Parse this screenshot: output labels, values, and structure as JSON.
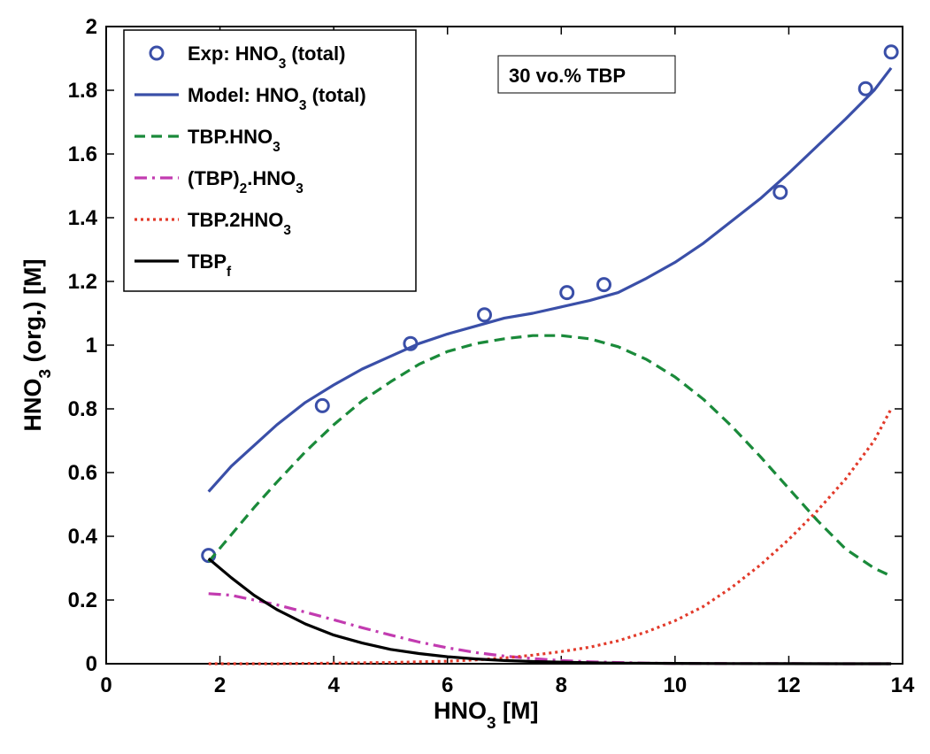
{
  "chart_data": {
    "type": "line",
    "title": "",
    "xlabel": {
      "main": "HNO",
      "sub": "3",
      "tail": "  [M]"
    },
    "ylabel": {
      "main": "HNO",
      "sub": "3",
      "tail": " (org.)  [M]"
    },
    "xlim": [
      0,
      14
    ],
    "ylim": [
      0,
      2
    ],
    "xticks": [
      0,
      2,
      4,
      6,
      8,
      10,
      12,
      14
    ],
    "yticks": [
      0,
      0.2,
      0.4,
      0.6,
      0.8,
      1,
      1.2,
      1.4,
      1.6,
      1.8,
      2
    ],
    "xtick_labels": [
      "0",
      "2",
      "4",
      "6",
      "8",
      "10",
      "12",
      "14"
    ],
    "ytick_labels": [
      "0",
      "0.2",
      "0.4",
      "0.6",
      "0.8",
      "1",
      "1.2",
      "1.4",
      "1.6",
      "1.8",
      "2"
    ],
    "grid": false,
    "annotation": "30 vo.% TBP",
    "legend_position": "top-left",
    "series": [
      {
        "name": "Exp: HNO3 (total)",
        "label": {
          "main": "Exp: HNO",
          "sub": "3",
          "tail": " (total)"
        },
        "kind": "markers",
        "color": "#3a4fa8",
        "x": [
          1.8,
          3.8,
          5.35,
          6.65,
          8.1,
          8.75,
          11.85,
          13.35,
          13.8
        ],
        "y": [
          0.34,
          0.81,
          1.005,
          1.095,
          1.165,
          1.19,
          1.48,
          1.805,
          1.92
        ]
      },
      {
        "name": "Model: HNO3 (total)",
        "label": {
          "main": "Model: HNO",
          "sub": "3",
          "tail": " (total)"
        },
        "kind": "solid",
        "color": "#3a4fa8",
        "x": [
          1.8,
          2.2,
          2.6,
          3.0,
          3.5,
          4.0,
          4.5,
          5.0,
          5.5,
          6.0,
          6.5,
          7.0,
          7.5,
          8.0,
          8.5,
          9.0,
          9.5,
          10.0,
          10.5,
          11.0,
          11.5,
          12.0,
          12.5,
          13.0,
          13.5,
          13.8
        ],
        "y": [
          0.54,
          0.62,
          0.685,
          0.75,
          0.82,
          0.875,
          0.925,
          0.965,
          1.005,
          1.035,
          1.06,
          1.085,
          1.1,
          1.12,
          1.14,
          1.165,
          1.21,
          1.26,
          1.32,
          1.39,
          1.46,
          1.54,
          1.625,
          1.71,
          1.8,
          1.87
        ]
      },
      {
        "name": "TBP.HNO3",
        "label": {
          "main": "TBP.HNO",
          "sub": "3",
          "tail": ""
        },
        "kind": "dashed",
        "color": "#1a8a3a",
        "x": [
          1.8,
          2.2,
          2.6,
          3.0,
          3.5,
          4.0,
          4.5,
          5.0,
          5.5,
          6.0,
          6.5,
          7.0,
          7.5,
          8.0,
          8.5,
          9.0,
          9.5,
          10.0,
          10.5,
          11.0,
          11.5,
          12.0,
          12.5,
          13.0,
          13.5,
          13.8
        ],
        "y": [
          0.32,
          0.405,
          0.49,
          0.57,
          0.665,
          0.75,
          0.825,
          0.885,
          0.94,
          0.98,
          1.005,
          1.02,
          1.03,
          1.03,
          1.02,
          0.995,
          0.955,
          0.9,
          0.83,
          0.745,
          0.65,
          0.55,
          0.45,
          0.36,
          0.3,
          0.275
        ]
      },
      {
        "name": "(TBP)2.HNO3",
        "label": {
          "main": "(TBP)",
          "sub": "2",
          "tail": ".HNO",
          "sub2": "3"
        },
        "kind": "dashdot",
        "color": "#c23bb0",
        "x": [
          1.8,
          2.2,
          2.6,
          3.0,
          3.5,
          4.0,
          4.5,
          5.0,
          5.5,
          6.0,
          6.5,
          7.0,
          7.5,
          8.0,
          8.5,
          9.0,
          9.5,
          10.0,
          11.0,
          12.0,
          13.0,
          13.8
        ],
        "y": [
          0.22,
          0.215,
          0.2,
          0.185,
          0.162,
          0.138,
          0.113,
          0.09,
          0.068,
          0.05,
          0.035,
          0.024,
          0.016,
          0.01,
          0.006,
          0.004,
          0.002,
          0.001,
          0.0005,
          0.0002,
          0.0001,
          0.0
        ]
      },
      {
        "name": "TBP.2HNO3",
        "label": {
          "main": "TBP.2HNO",
          "sub": "3",
          "tail": ""
        },
        "kind": "dotted",
        "color": "#e23a2a",
        "x": [
          1.8,
          3.0,
          4.0,
          5.0,
          6.0,
          6.5,
          7.0,
          7.5,
          8.0,
          8.5,
          9.0,
          9.5,
          10.0,
          10.5,
          11.0,
          11.5,
          12.0,
          12.5,
          13.0,
          13.5,
          13.8
        ],
        "y": [
          0.0,
          0.0,
          0.002,
          0.004,
          0.008,
          0.012,
          0.018,
          0.027,
          0.038,
          0.052,
          0.072,
          0.1,
          0.135,
          0.18,
          0.24,
          0.31,
          0.39,
          0.48,
          0.58,
          0.7,
          0.8
        ]
      },
      {
        "name": "TBPf",
        "label": {
          "main": "TBP",
          "sub": "f",
          "tail": ""
        },
        "kind": "solid",
        "color": "#000000",
        "x": [
          1.8,
          2.2,
          2.6,
          3.0,
          3.5,
          4.0,
          4.5,
          5.0,
          5.5,
          6.0,
          6.5,
          7.0,
          7.5,
          8.0,
          8.5,
          9.0,
          10.0,
          11.0,
          12.0,
          13.0,
          13.8
        ],
        "y": [
          0.33,
          0.27,
          0.215,
          0.17,
          0.125,
          0.09,
          0.065,
          0.045,
          0.032,
          0.022,
          0.015,
          0.01,
          0.007,
          0.005,
          0.003,
          0.002,
          0.001,
          0.0005,
          0.0002,
          0.0001,
          0.0
        ]
      }
    ]
  }
}
